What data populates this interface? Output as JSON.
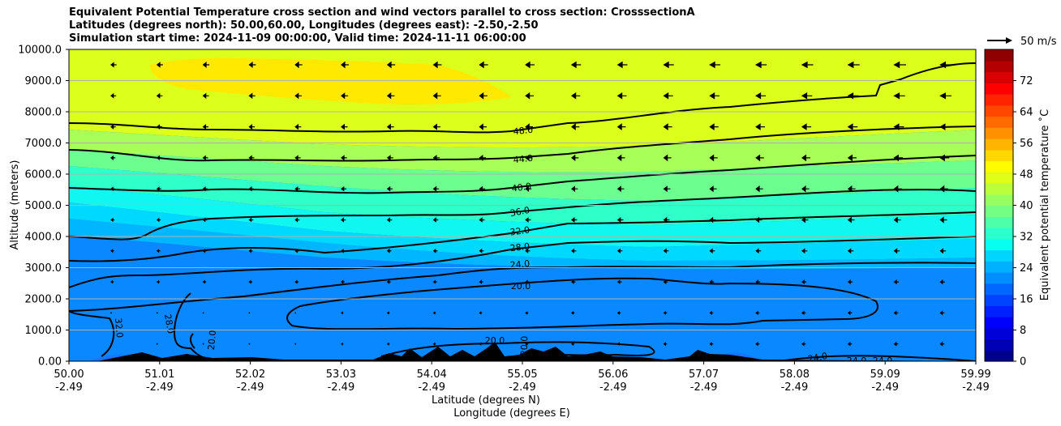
{
  "title_lines": [
    "Equivalent Potential Temperature cross section and wind vectors parallel to cross section: CrosssectionA",
    "Latitudes (degrees north): 50.00,60.00, Longitudes (degrees east): -2.50,-2.50",
    "Simulation start time: 2024-11-09 00:00:00, Valid time: 2024-11-11 06:00:00"
  ],
  "chart_data": {
    "type": "contourf",
    "xlabel_lines": [
      "Latitude (degrees N)",
      "Longitude (degrees E)"
    ],
    "ylabel": "Altitude (meters)",
    "colorbar_label": "Equivalent potential temperature ˚C",
    "x_ticks": [
      {
        "lat": "50.00",
        "lon": "-2.49"
      },
      {
        "lat": "51.01",
        "lon": "-2.49"
      },
      {
        "lat": "52.02",
        "lon": "-2.49"
      },
      {
        "lat": "53.03",
        "lon": "-2.49"
      },
      {
        "lat": "54.04",
        "lon": "-2.49"
      },
      {
        "lat": "55.05",
        "lon": "-2.49"
      },
      {
        "lat": "56.06",
        "lon": "-2.49"
      },
      {
        "lat": "57.07",
        "lon": "-2.49"
      },
      {
        "lat": "58.08",
        "lon": "-2.49"
      },
      {
        "lat": "59.09",
        "lon": "-2.49"
      },
      {
        "lat": "59.99",
        "lon": "-2.49"
      }
    ],
    "y_ticks": [
      "0.00",
      "1000.0",
      "2000.0",
      "3000.0",
      "4000.0",
      "5000.0",
      "6000.0",
      "7000.0",
      "8000.0",
      "9000.0",
      "10000.0"
    ],
    "y_range": [
      0,
      10000
    ],
    "colorbar_ticks": [
      "0",
      "8",
      "16",
      "24",
      "32",
      "40",
      "48",
      "56",
      "64",
      "72"
    ],
    "colorbar_range": [
      0,
      80
    ],
    "colorbar_colors": [
      "#00008f",
      "#0000b4",
      "#0000d8",
      "#0000fd",
      "#0020ff",
      "#0044ff",
      "#0068ff",
      "#008dff",
      "#00b1ff",
      "#00d5ff",
      "#06fff1",
      "#2affcd",
      "#4effa9",
      "#73ff84",
      "#97ff60",
      "#bbff3c",
      "#dfff18",
      "#fffc00",
      "#ffd800",
      "#ffb400",
      "#ff9000",
      "#ff6b00",
      "#ff4700",
      "#ff2300",
      "#fd0000",
      "#d80000",
      "#b40000",
      "#8f0000"
    ],
    "contour_labels": [
      {
        "text": "48.0",
        "angle": -6
      },
      {
        "text": "44.0",
        "angle": -6
      },
      {
        "text": "40.0",
        "angle": -8
      },
      {
        "text": "36.0",
        "angle": -10
      },
      {
        "text": "32.0",
        "angle": -8
      },
      {
        "text": "28.0",
        "angle": -6
      },
      {
        "text": "24.0",
        "angle": -5
      },
      {
        "text": "20.0",
        "angle": 0
      },
      {
        "text": "20.0",
        "angle": 0
      },
      {
        "text": "20.0",
        "angle": -88
      },
      {
        "text": "32.0",
        "angle": 85
      },
      {
        "text": "28.0",
        "angle": 80
      },
      {
        "text": "20.0",
        "angle": -85
      },
      {
        "text": "24.0",
        "angle": -10
      },
      {
        "text": "24.0",
        "angle": 0
      },
      {
        "text": "24.0",
        "angle": 0
      },
      {
        "text": "20.0",
        "angle": 0
      }
    ],
    "wind_key": "50 m/s"
  }
}
